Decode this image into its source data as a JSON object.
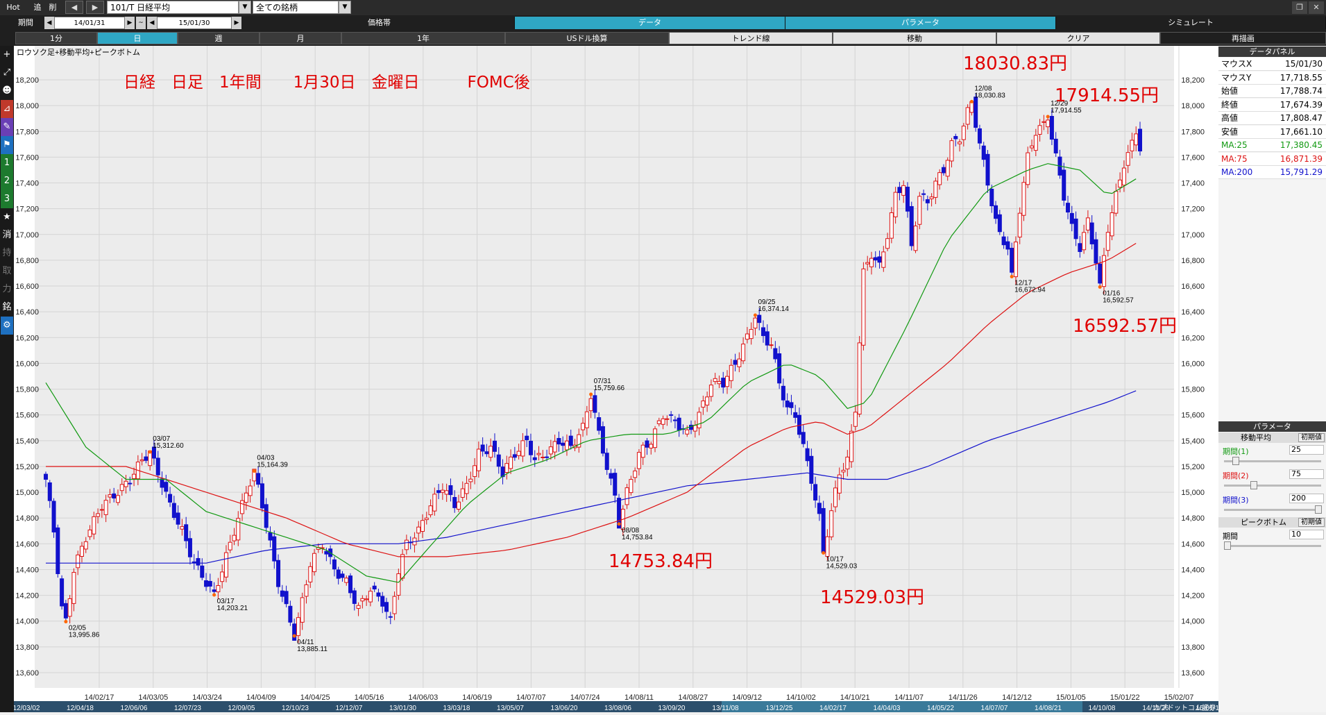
{
  "toolbar": {
    "hot": "Hot",
    "add": "追",
    "del": "削",
    "symbol": "101/T 日経平均",
    "universe": "全ての銘柄"
  },
  "period_bar": {
    "label": "期間",
    "from": "14/01/31",
    "sep": "~",
    "to": "15/01/30",
    "sections": [
      "価格帯",
      "データ",
      "パラメータ",
      "シミュレート"
    ]
  },
  "timeframe_bar": {
    "buttons": [
      "1分",
      "日",
      "週",
      "月",
      "1年",
      "USドル換算",
      "トレンド線",
      "移動",
      "クリア",
      "再描画"
    ]
  },
  "sidebar": [
    "+",
    "⤢",
    "☻",
    "⊿",
    "✎",
    "⚑",
    "1",
    "2",
    "3",
    "★",
    "消",
    "持",
    "取",
    "力",
    "銘",
    "⚙"
  ],
  "data_panel": {
    "title": "データパネル",
    "rows": [
      {
        "k": "マウスX",
        "v": "15/01/30",
        "color": "#000000"
      },
      {
        "k": "マウスY",
        "v": "17,718.55",
        "color": "#000000"
      },
      {
        "k": "始値",
        "v": "17,788.74",
        "color": "#000000"
      },
      {
        "k": "終値",
        "v": "17,674.39",
        "color": "#000000"
      },
      {
        "k": "高値",
        "v": "17,808.47",
        "color": "#000000"
      },
      {
        "k": "安値",
        "v": "17,661.10",
        "color": "#000000"
      },
      {
        "k": "MA:25",
        "v": "17,380.45",
        "color": "#119911"
      },
      {
        "k": "MA:75",
        "v": "16,871.39",
        "color": "#dd1111"
      },
      {
        "k": "MA:200",
        "v": "15,791.29",
        "color": "#1111cc"
      }
    ]
  },
  "param_panel": {
    "title": "パラメータ",
    "ma_title": "移動平均",
    "reset": "初期値",
    "params": [
      {
        "k": "期間(1)",
        "v": "25",
        "color": "#119911",
        "level": 0.09
      },
      {
        "k": "期間(2)",
        "v": "75",
        "color": "#dd1111",
        "level": 0.28
      },
      {
        "k": "期間(3)",
        "v": "200",
        "color": "#1111cc",
        "level": 0.97
      }
    ],
    "pb_title": "ピークボトム",
    "pb_reset": "初期値",
    "pb_param": {
      "k": "期間",
      "v": "10",
      "level": 0.0
    }
  },
  "chart_data": {
    "type": "candlestick",
    "legend": "ロウソク足+移動平均+ピークボトム",
    "annotations": {
      "headline": "日経　日足　1年間　　1月30日　金曜日　　　FOMC後",
      "callouts": [
        "18030.83円",
        "17914.55円",
        "16592.57円",
        "14753.84円",
        "14529.03円"
      ]
    },
    "ylim": [
      13500,
      18500
    ],
    "yticks": [
      13600,
      13800,
      14000,
      14200,
      14400,
      14600,
      14800,
      15000,
      15200,
      15400,
      15600,
      15800,
      16000,
      16200,
      16400,
      16600,
      16800,
      17000,
      17200,
      17400,
      17600,
      17800,
      18000,
      18200
    ],
    "ytick_labels": [
      "13,600",
      "13,800",
      "14,000",
      "14,200",
      "14,400",
      "14,600",
      "14,800",
      "15,000",
      "15,200",
      "15,400",
      "15,600",
      "15,800",
      "16,000",
      "16,200",
      "16,400",
      "16,600",
      "16,800",
      "17,000",
      "17,200",
      "17,400",
      "17,600",
      "17,800",
      "18,000",
      "18,200"
    ],
    "x_dates": [
      "14/02/17",
      "14/03/05",
      "14/03/24",
      "14/04/09",
      "14/04/25",
      "14/05/16",
      "14/06/03",
      "14/06/19",
      "14/07/07",
      "14/07/24",
      "14/08/11",
      "14/08/27",
      "14/09/12",
      "14/10/02",
      "14/10/21",
      "14/11/07",
      "14/11/26",
      "14/12/12",
      "15/01/05",
      "15/01/22",
      "15/02/07"
    ],
    "overview_dates": [
      "12/03/02",
      "12/04/18",
      "12/06/06",
      "12/07/23",
      "12/09/05",
      "12/10/23",
      "12/12/07",
      "13/01/30",
      "13/03/18",
      "13/05/07",
      "13/06/20",
      "13/08/06",
      "13/09/20",
      "13/11/08",
      "13/12/25",
      "14/02/17",
      "14/04/03",
      "14/05/22",
      "14/07/07",
      "14/08/21",
      "14/10/08",
      "14/11/26",
      "15/01/16"
    ],
    "brand": "カブドットコム証券",
    "colors": {
      "up": "#dd1111",
      "down": "#1111cc",
      "ma25": "#119911",
      "ma75": "#dd1111",
      "ma200": "#1111cc",
      "peak": "#ff6600"
    },
    "ohlc_keypoints": [
      [
        0,
        15100
      ],
      [
        2,
        14700
      ],
      [
        3,
        14400
      ],
      [
        4,
        14100
      ],
      [
        5,
        13996
      ],
      [
        7,
        14400
      ],
      [
        10,
        14650
      ],
      [
        14,
        14900
      ],
      [
        18,
        15000
      ],
      [
        21,
        15100
      ],
      [
        24,
        15250
      ],
      [
        26,
        15313
      ],
      [
        28,
        15150
      ],
      [
        31,
        14900
      ],
      [
        34,
        14700
      ],
      [
        37,
        14450
      ],
      [
        40,
        14300
      ],
      [
        42,
        14203
      ],
      [
        45,
        14500
      ],
      [
        48,
        14800
      ],
      [
        50,
        15000
      ],
      [
        52,
        15164
      ],
      [
        54,
        14900
      ],
      [
        56,
        14600
      ],
      [
        58,
        14300
      ],
      [
        60,
        14100
      ],
      [
        62,
        13885
      ],
      [
        64,
        14150
      ],
      [
        66,
        14450
      ],
      [
        69,
        14600
      ],
      [
        72,
        14400
      ],
      [
        75,
        14300
      ],
      [
        78,
        14100
      ],
      [
        81,
        14250
      ],
      [
        84,
        14150
      ],
      [
        86,
        14000
      ],
      [
        88,
        14400
      ],
      [
        90,
        14600
      ],
      [
        93,
        14700
      ],
      [
        96,
        14900
      ],
      [
        99,
        15050
      ],
      [
        102,
        14900
      ],
      [
        105,
        15050
      ],
      [
        108,
        15300
      ],
      [
        111,
        15350
      ],
      [
        114,
        15150
      ],
      [
        117,
        15300
      ],
      [
        120,
        15400
      ],
      [
        122,
        15250
      ],
      [
        125,
        15300
      ],
      [
        128,
        15400
      ],
      [
        131,
        15350
      ],
      [
        134,
        15500
      ],
      [
        136,
        15760
      ],
      [
        138,
        15450
      ],
      [
        140,
        15200
      ],
      [
        142,
        14960
      ],
      [
        143,
        14754
      ],
      [
        145,
        15000
      ],
      [
        148,
        15300
      ],
      [
        151,
        15400
      ],
      [
        154,
        15600
      ],
      [
        157,
        15550
      ],
      [
        160,
        15450
      ],
      [
        163,
        15600
      ],
      [
        166,
        15850
      ],
      [
        169,
        15850
      ],
      [
        172,
        16000
      ],
      [
        175,
        16200
      ],
      [
        177,
        16374
      ],
      [
        179,
        16200
      ],
      [
        181,
        16150
      ],
      [
        183,
        15850
      ],
      [
        185,
        15650
      ],
      [
        187,
        15600
      ],
      [
        189,
        15350
      ],
      [
        191,
        15100
      ],
      [
        193,
        14800
      ],
      [
        194,
        14529
      ],
      [
        196,
        14850
      ],
      [
        198,
        15150
      ],
      [
        200,
        15250
      ],
      [
        202,
        15650
      ],
      [
        204,
        16700
      ],
      [
        206,
        16850
      ],
      [
        208,
        16750
      ],
      [
        210,
        17000
      ],
      [
        212,
        17300
      ],
      [
        214,
        17400
      ],
      [
        216,
        16900
      ],
      [
        218,
        17300
      ],
      [
        220,
        17250
      ],
      [
        222,
        17400
      ],
      [
        224,
        17500
      ],
      [
        226,
        17700
      ],
      [
        228,
        17750
      ],
      [
        230,
        17950
      ],
      [
        231,
        18031
      ],
      [
        233,
        17700
      ],
      [
        235,
        17400
      ],
      [
        237,
        17100
      ],
      [
        238,
        17000
      ],
      [
        240,
        16900
      ],
      [
        241,
        16673
      ],
      [
        243,
        17200
      ],
      [
        245,
        17600
      ],
      [
        247,
        17800
      ],
      [
        249,
        17850
      ],
      [
        250,
        17915
      ],
      [
        252,
        17600
      ],
      [
        254,
        17300
      ],
      [
        256,
        17050
      ],
      [
        258,
        16900
      ],
      [
        260,
        17100
      ],
      [
        262,
        16800
      ],
      [
        263,
        16593
      ],
      [
        265,
        17050
      ],
      [
        267,
        17300
      ],
      [
        269,
        17550
      ],
      [
        271,
        17700
      ],
      [
        272,
        17800
      ],
      [
        273,
        17674
      ]
    ],
    "ma25": [
      [
        0,
        15850
      ],
      [
        10,
        15350
      ],
      [
        20,
        15100
      ],
      [
        30,
        15100
      ],
      [
        40,
        14850
      ],
      [
        50,
        14750
      ],
      [
        60,
        14650
      ],
      [
        70,
        14550
      ],
      [
        80,
        14350
      ],
      [
        88,
        14300
      ],
      [
        95,
        14550
      ],
      [
        105,
        14900
      ],
      [
        115,
        15150
      ],
      [
        125,
        15250
      ],
      [
        135,
        15400
      ],
      [
        145,
        15450
      ],
      [
        155,
        15450
      ],
      [
        165,
        15550
      ],
      [
        175,
        15850
      ],
      [
        185,
        16000
      ],
      [
        193,
        15900
      ],
      [
        200,
        15650
      ],
      [
        205,
        15700
      ],
      [
        215,
        16300
      ],
      [
        225,
        16950
      ],
      [
        235,
        17350
      ],
      [
        245,
        17500
      ],
      [
        250,
        17550
      ],
      [
        258,
        17500
      ],
      [
        265,
        17300
      ],
      [
        273,
        17450
      ]
    ],
    "ma75": [
      [
        0,
        15200
      ],
      [
        20,
        15200
      ],
      [
        30,
        15100
      ],
      [
        45,
        14950
      ],
      [
        60,
        14800
      ],
      [
        75,
        14600
      ],
      [
        88,
        14500
      ],
      [
        100,
        14500
      ],
      [
        115,
        14550
      ],
      [
        130,
        14650
      ],
      [
        145,
        14800
      ],
      [
        160,
        15000
      ],
      [
        175,
        15350
      ],
      [
        185,
        15500
      ],
      [
        193,
        15550
      ],
      [
        200,
        15450
      ],
      [
        205,
        15500
      ],
      [
        215,
        15750
      ],
      [
        225,
        16000
      ],
      [
        235,
        16300
      ],
      [
        245,
        16550
      ],
      [
        255,
        16700
      ],
      [
        265,
        16800
      ],
      [
        273,
        16950
      ]
    ],
    "ma200": [
      [
        0,
        14450
      ],
      [
        20,
        14450
      ],
      [
        40,
        14450
      ],
      [
        55,
        14550
      ],
      [
        70,
        14600
      ],
      [
        88,
        14600
      ],
      [
        100,
        14650
      ],
      [
        115,
        14750
      ],
      [
        130,
        14850
      ],
      [
        145,
        14950
      ],
      [
        160,
        15050
      ],
      [
        175,
        15100
      ],
      [
        190,
        15150
      ],
      [
        200,
        15100
      ],
      [
        210,
        15100
      ],
      [
        220,
        15200
      ],
      [
        235,
        15400
      ],
      [
        250,
        15550
      ],
      [
        265,
        15700
      ],
      [
        273,
        15800
      ]
    ],
    "peaks": [
      {
        "i": 5,
        "date": "02/05",
        "value": "13,995.86",
        "y": 13995.86,
        "pos": "below"
      },
      {
        "i": 26,
        "date": "03/07",
        "value": "15,312.60",
        "y": 15312.6,
        "pos": "above"
      },
      {
        "i": 42,
        "date": "03/17",
        "value": "14,203.21",
        "y": 14203.21,
        "pos": "below"
      },
      {
        "i": 52,
        "date": "04/03",
        "value": "15,164.39",
        "y": 15164.39,
        "pos": "above"
      },
      {
        "i": 62,
        "date": "04/11",
        "value": "13,885.11",
        "y": 13885.11,
        "pos": "below"
      },
      {
        "i": 136,
        "date": "07/31",
        "value": "15,759.66",
        "y": 15759.66,
        "pos": "above"
      },
      {
        "i": 143,
        "date": "08/08",
        "value": "14,753.84",
        "y": 14753.84,
        "pos": "below"
      },
      {
        "i": 177,
        "date": "09/25",
        "value": "16,374.14",
        "y": 16374.14,
        "pos": "above"
      },
      {
        "i": 194,
        "date": "10/17",
        "value": "14,529.03",
        "y": 14529.03,
        "pos": "below"
      },
      {
        "i": 231,
        "date": "12/08",
        "value": "18,030.83",
        "y": 18030.83,
        "pos": "above"
      },
      {
        "i": 241,
        "date": "12/17",
        "value": "16,672.94",
        "y": 16672.94,
        "pos": "below"
      },
      {
        "i": 250,
        "date": "12/29",
        "value": "17,914.55",
        "y": 17914.55,
        "pos": "above"
      },
      {
        "i": 263,
        "date": "01/16",
        "value": "16,592.57",
        "y": 16592.57,
        "pos": "below"
      }
    ]
  }
}
